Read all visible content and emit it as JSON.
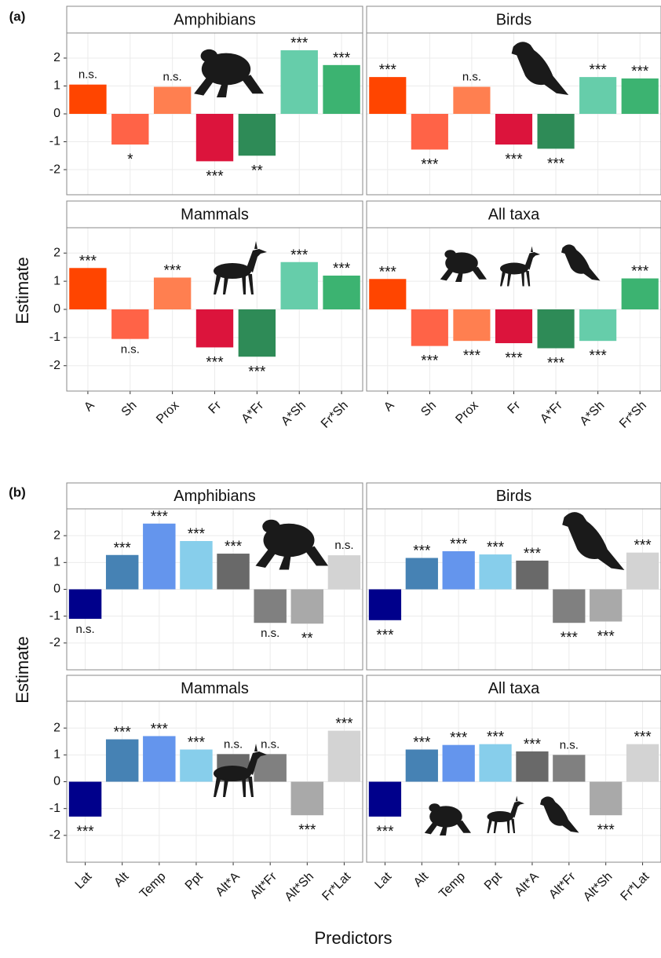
{
  "x_label": "Predictors",
  "chart_data": [
    {
      "type": "bar",
      "panel_label": "(a)",
      "y_label": "Estimate",
      "categories": [
        "A",
        "Sh",
        "Prox",
        "Fr",
        "A*Fr",
        "A*Sh",
        "Fr*Sh"
      ],
      "colors": [
        "#ff4500",
        "#ff6347",
        "#ff7f50",
        "#dc143c",
        "#2e8b57",
        "#66cdaa",
        "#3cb371"
      ],
      "ylim": [
        -2.9,
        2.9
      ],
      "yticks": [
        -2,
        -1,
        0,
        1,
        2
      ],
      "grid": true,
      "facets": [
        {
          "title": "Amphibians",
          "values": [
            1.05,
            -1.1,
            0.97,
            -1.7,
            -1.5,
            2.28,
            1.75
          ],
          "significance": [
            "n.s.",
            "*",
            "n.s.",
            "***",
            "**",
            "***",
            "***"
          ]
        },
        {
          "title": "Birds",
          "values": [
            1.32,
            -1.28,
            0.97,
            -1.1,
            -1.25,
            1.32,
            1.27
          ],
          "significance": [
            "***",
            "***",
            "n.s.",
            "***",
            "***",
            "***",
            "***"
          ]
        },
        {
          "title": "Mammals",
          "values": [
            1.47,
            -1.05,
            1.13,
            -1.35,
            -1.68,
            1.68,
            1.2
          ],
          "significance": [
            "***",
            "n.s.",
            "***",
            "***",
            "***",
            "***",
            "***"
          ]
        },
        {
          "title": "All taxa",
          "values": [
            1.08,
            -1.3,
            -1.12,
            -1.2,
            -1.38,
            -1.12,
            1.1
          ],
          "significance": [
            "***",
            "***",
            "***",
            "***",
            "***",
            "***",
            "***"
          ]
        }
      ]
    },
    {
      "type": "bar",
      "panel_label": "(b)",
      "y_label": "Estimate",
      "categories": [
        "Lat",
        "Alt",
        "Temp",
        "Ppt",
        "Alt*A",
        "Alt*Fr",
        "Alt*Sh",
        "Fr*Lat"
      ],
      "colors": [
        "#00008b",
        "#4682b4",
        "#6495ed",
        "#87ceeb",
        "#696969",
        "#808080",
        "#a9a9a9",
        "#d3d3d3"
      ],
      "ylim": [
        -3,
        3
      ],
      "yticks": [
        -2,
        -1,
        0,
        1,
        2
      ],
      "grid": true,
      "facets": [
        {
          "title": "Amphibians",
          "values": [
            -1.1,
            1.28,
            2.45,
            1.8,
            1.33,
            -1.25,
            -1.28,
            1.27
          ],
          "significance": [
            "n.s.",
            "***",
            "***",
            "***",
            "***",
            "n.s.",
            "**",
            "n.s."
          ]
        },
        {
          "title": "Birds",
          "values": [
            -1.15,
            1.17,
            1.42,
            1.3,
            1.07,
            -1.25,
            -1.2,
            1.37
          ],
          "significance": [
            "***",
            "***",
            "***",
            "***",
            "***",
            "***",
            "***",
            "***"
          ]
        },
        {
          "title": "Mammals",
          "values": [
            -1.3,
            1.58,
            1.7,
            1.2,
            1.03,
            1.03,
            -1.25,
            1.9
          ],
          "significance": [
            "***",
            "***",
            "***",
            "***",
            "n.s.",
            "n.s.",
            "***",
            "***"
          ]
        },
        {
          "title": "All taxa",
          "values": [
            -1.3,
            1.2,
            1.37,
            1.4,
            1.13,
            1.0,
            -1.25,
            1.4
          ],
          "significance": [
            "***",
            "***",
            "***",
            "***",
            "***",
            "n.s.",
            "***",
            "***"
          ]
        }
      ]
    }
  ]
}
